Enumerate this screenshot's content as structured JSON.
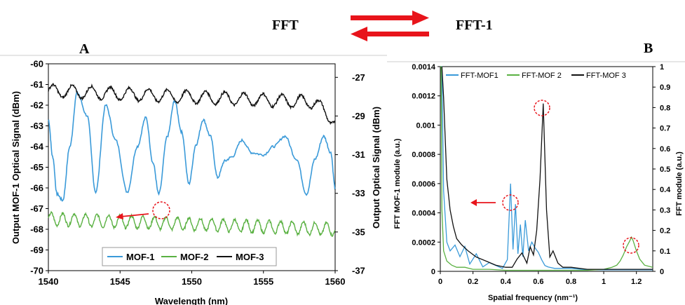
{
  "header": {
    "left_label": "FFT",
    "right_label": "FFT-1",
    "arrow_color": "#e8141b"
  },
  "chart_data": [
    {
      "panel_letter": "A",
      "type": "line",
      "xlabel": "Wavelength (nm)",
      "ylabel_left": "Output MOF-1 Optical Signal (dBm)",
      "ylabel_right": "Output Optical Signal (dBm)",
      "xlim": [
        1540,
        1560
      ],
      "ylim_left": [
        -70,
        -60
      ],
      "ylim_right": [
        -37,
        -26.3
      ],
      "xticks": [
        1540,
        1545,
        1550,
        1555,
        1560
      ],
      "yticks_left": [
        -70,
        -69,
        -68,
        -67,
        -66,
        -65,
        -64,
        -63,
        -62,
        -61,
        -60
      ],
      "yticks_right": [
        -37,
        -35,
        -33,
        -31,
        -29,
        -27
      ],
      "legend_position": "bottom-center",
      "annotation": {
        "type": "circle-with-arrow",
        "x": 1547.7,
        "y": -66.3,
        "arrow_direction": "left-to-left-axis"
      },
      "series": [
        {
          "name": "MOF-1",
          "axis": "left",
          "color": "#3a9ad9",
          "x": [
            1540.0,
            1540.3,
            1540.6,
            1541.0,
            1541.5,
            1542.0,
            1542.7,
            1543.3,
            1544.0,
            1544.7,
            1545.5,
            1546.2,
            1546.8,
            1547.3,
            1547.7,
            1548.3,
            1548.8,
            1549.3,
            1549.8,
            1550.3,
            1550.8,
            1551.3,
            1551.8,
            1552.3,
            1552.8,
            1553.5,
            1554.2,
            1555.0,
            1555.7,
            1556.5,
            1557.3,
            1558.0,
            1558.6,
            1559.2,
            1559.7,
            1560.0
          ],
          "y": [
            -62.7,
            -64.5,
            -66.3,
            -66.6,
            -64.0,
            -61.4,
            -62.5,
            -66.2,
            -62.0,
            -63.7,
            -66.2,
            -64.0,
            -62.6,
            -64.8,
            -66.3,
            -63.5,
            -61.8,
            -63.3,
            -65.8,
            -63.9,
            -62.7,
            -63.5,
            -65.5,
            -64.7,
            -64.5,
            -63.7,
            -64.3,
            -64.4,
            -64.0,
            -63.5,
            -64.6,
            -66.3,
            -64.6,
            -63.5,
            -64.3,
            -66.0
          ]
        },
        {
          "name": "MOF-2",
          "axis": "left",
          "color": "#5ab142",
          "x": [
            1540,
            1560
          ],
          "y_mean": -67.5,
          "y_amplitude": 0.3,
          "y_trend_end": -68.0,
          "period_nm": 0.8
        },
        {
          "name": "MOF-3",
          "axis": "left",
          "color": "#111111",
          "x": [
            1540,
            1560
          ],
          "y_mean": -61.3,
          "y_amplitude": 0.3,
          "y_trend_end": -61.9,
          "y_end": -62.8,
          "period_nm": 1.33
        }
      ]
    },
    {
      "panel_letter": "B",
      "type": "line",
      "xlabel": "Spatial frequency (nm⁻¹)",
      "ylabel_left": "FFT MOF-1 module (a.u.)",
      "ylabel_right": "FFT module (a.u.)",
      "xlim": [
        0,
        1.3
      ],
      "ylim_left": [
        0,
        0.0014
      ],
      "ylim_right": [
        0,
        1
      ],
      "xticks": [
        0,
        0.2,
        0.4,
        0.6,
        0.8,
        1,
        1.2
      ],
      "xtick_labels": [
        "0",
        "0.2",
        "0.4",
        "0.6",
        "0.8",
        "1",
        "1.2"
      ],
      "yticks_left": [
        0,
        0.0002,
        0.0004,
        0.0006,
        0.0008,
        0.001,
        0.0012,
        0.0014
      ],
      "ytick_labels_left": [
        "0",
        "0.0002",
        "0.0004",
        "0.0006",
        "0.0008",
        "0.001",
        "0.0012",
        "0.0014"
      ],
      "yticks_right": [
        0,
        0.1,
        0.2,
        0.3,
        0.4,
        0.5,
        0.6,
        0.7,
        0.8,
        0.9,
        1
      ],
      "ytick_labels_right": [
        "0",
        "0.1",
        "0.2",
        "0.3",
        "0.4",
        "0.5",
        "0.6",
        "0.7",
        "0.8",
        "0.9",
        "1"
      ],
      "legend_position": "top",
      "annotations": [
        {
          "type": "circle-with-arrow",
          "x": 0.43,
          "y_left": 0.00069,
          "arrow_direction": "left"
        },
        {
          "type": "circle",
          "x": 0.63,
          "y_right": 0.84
        },
        {
          "type": "circle",
          "x": 1.17,
          "y_right": 0.167
        }
      ],
      "series": [
        {
          "name": "FFT-MOF1",
          "axis": "left",
          "color": "#3a9ad9",
          "x": [
            0.0,
            0.01,
            0.02,
            0.04,
            0.06,
            0.09,
            0.12,
            0.15,
            0.18,
            0.22,
            0.26,
            0.3,
            0.34,
            0.38,
            0.41,
            0.43,
            0.445,
            0.46,
            0.475,
            0.49,
            0.505,
            0.52,
            0.54,
            0.56,
            0.58,
            0.6,
            0.62,
            0.64,
            0.66,
            0.7,
            0.75,
            0.8,
            0.9,
            1.0,
            1.1,
            1.2,
            1.3
          ],
          "y": [
            0.0014,
            0.0014,
            0.00055,
            0.0002,
            0.00014,
            0.00018,
            0.0001,
            0.00017,
            5e-05,
            0.00012,
            3e-05,
            6e-05,
            4e-05,
            2e-05,
            8e-05,
            0.0006,
            0.00015,
            0.00046,
            0.00012,
            0.00032,
            0.0001,
            0.00035,
            0.00014,
            0.0002,
            0.00016,
            0.00013,
            8e-05,
            4e-05,
            3e-05,
            2e-05,
            2e-05,
            2e-05,
            1e-05,
            1e-05,
            1e-05,
            1e-05,
            1e-05
          ]
        },
        {
          "name": "FFT-MOF 2",
          "axis": "right",
          "color": "#5ab142",
          "x": [
            0.0,
            0.005,
            0.01,
            0.02,
            0.04,
            0.07,
            0.1,
            0.15,
            0.2,
            0.3,
            0.4,
            0.5,
            0.6,
            0.7,
            0.8,
            0.9,
            1.0,
            1.05,
            1.08,
            1.1,
            1.12,
            1.14,
            1.16,
            1.17,
            1.18,
            1.2,
            1.22,
            1.25,
            1.3
          ],
          "y": [
            1.0,
            1.0,
            0.3,
            0.1,
            0.05,
            0.03,
            0.02,
            0.02,
            0.01,
            0.01,
            0.005,
            0.005,
            0.005,
            0.005,
            0.005,
            0.005,
            0.01,
            0.02,
            0.03,
            0.05,
            0.08,
            0.12,
            0.15,
            0.167,
            0.15,
            0.1,
            0.06,
            0.03,
            0.02
          ]
        },
        {
          "name": "FFT-MOF 3",
          "axis": "right",
          "color": "#111111",
          "x": [
            0.01,
            0.02,
            0.04,
            0.06,
            0.08,
            0.1,
            0.13,
            0.17,
            0.22,
            0.28,
            0.34,
            0.4,
            0.44,
            0.47,
            0.5,
            0.53,
            0.55,
            0.57,
            0.59,
            0.61,
            0.63,
            0.65,
            0.67,
            0.69,
            0.72,
            0.75,
            0.8,
            0.9,
            1.0,
            1.1,
            1.2,
            1.3
          ],
          "y": [
            1.0,
            0.85,
            0.45,
            0.3,
            0.22,
            0.16,
            0.13,
            0.1,
            0.07,
            0.05,
            0.03,
            0.02,
            0.02,
            0.06,
            0.09,
            0.04,
            0.12,
            0.08,
            0.2,
            0.45,
            0.82,
            0.3,
            0.07,
            0.1,
            0.04,
            0.02,
            0.02,
            0.01,
            0.01,
            0.01,
            0.01,
            0.01
          ]
        }
      ]
    }
  ]
}
